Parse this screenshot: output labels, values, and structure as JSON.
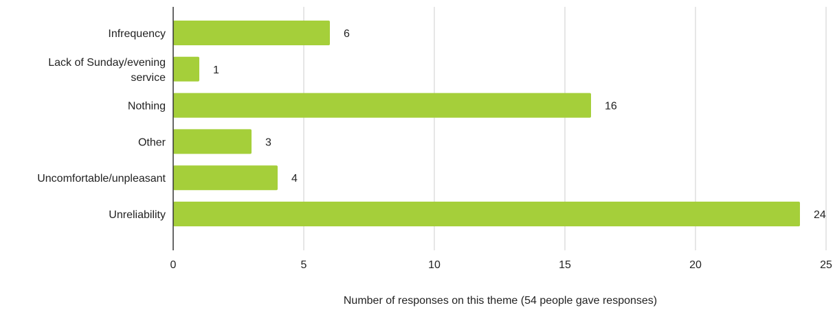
{
  "chart_data": {
    "type": "bar",
    "orientation": "horizontal",
    "categories": [
      [
        "Infrequency"
      ],
      [
        "Lack of Sunday/evening",
        "service"
      ],
      [
        "Nothing"
      ],
      [
        "Other"
      ],
      [
        "Uncomfortable/unpleasant"
      ],
      [
        "Unreliability"
      ]
    ],
    "values": [
      6,
      1,
      16,
      3,
      4,
      24
    ],
    "x_ticks": [
      0,
      5,
      10,
      15,
      20,
      25
    ],
    "xlim": [
      0,
      25
    ],
    "xlabel": "Number of responses on this theme (54 people gave responses)",
    "ylabel": "",
    "title": "",
    "grid": "vertical",
    "legend": "none",
    "colors": {
      "bar": "#a5cf3a",
      "grid": "#cccccc",
      "axis": "#333333"
    }
  }
}
